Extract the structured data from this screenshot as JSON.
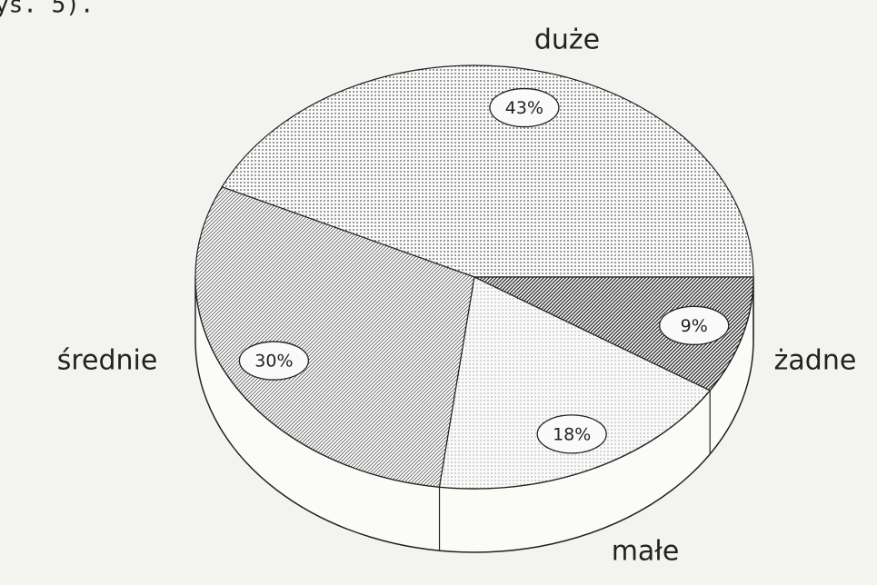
{
  "caption": "ys. 5).",
  "chart_data": {
    "type": "pie",
    "categories": [
      "duże",
      "średnie",
      "małe",
      "żadne"
    ],
    "values": [
      43,
      30,
      18,
      9
    ],
    "value_labels": [
      "43%",
      "30%",
      "18%",
      "9%"
    ],
    "colors": [
      "#555555",
      "#444444",
      "#777777",
      "#222222"
    ]
  }
}
